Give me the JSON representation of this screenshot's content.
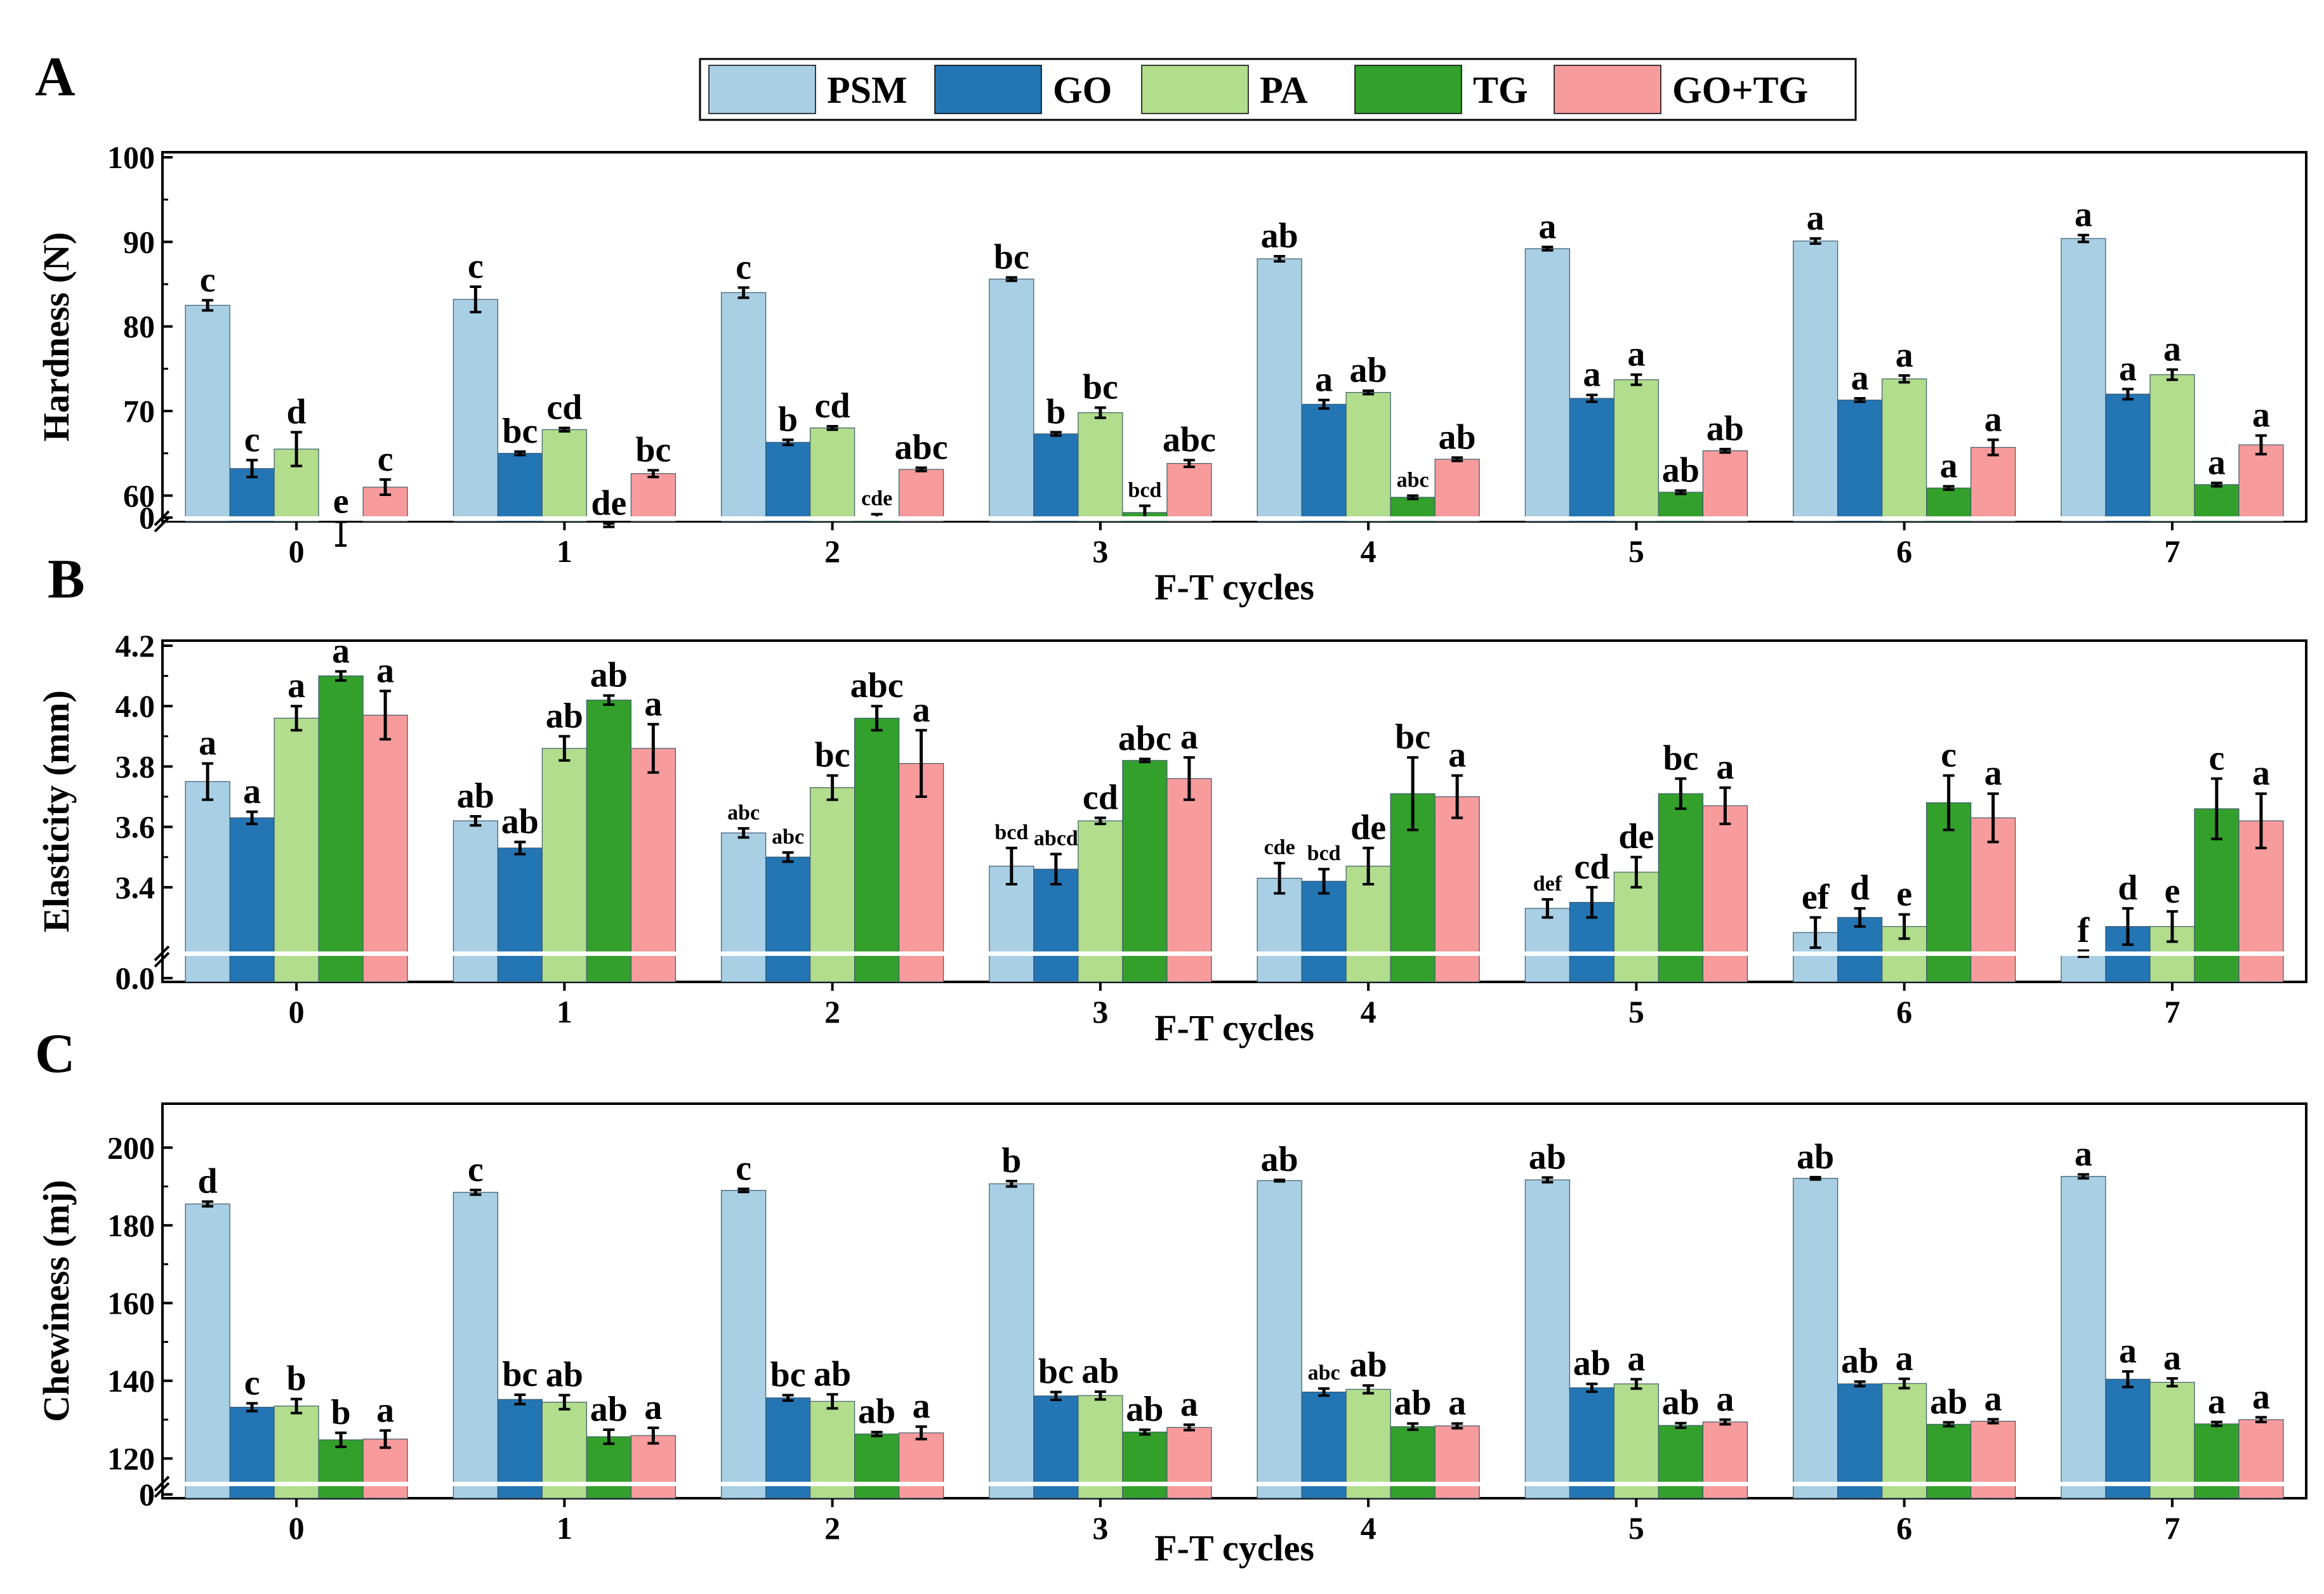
{
  "legend": [
    {
      "name": "PSM",
      "color": "#a8cfe4"
    },
    {
      "name": "GO",
      "color": "#2475b4"
    },
    {
      "name": "PA",
      "color": "#b1dd8c"
    },
    {
      "name": "TG",
      "color": "#33a02c"
    },
    {
      "name": "GO+TG",
      "color": "#f89b9c"
    }
  ],
  "chart_data": [
    {
      "panel": "A",
      "type": "bar",
      "xlabel": "F-T cycles",
      "ylabel": "Hardness (N)",
      "categories": [
        "0",
        "1",
        "2",
        "3",
        "4",
        "5",
        "6",
        "7"
      ],
      "ylim": [
        0,
        100
      ],
      "axis_break": [
        0,
        50
      ],
      "yticks": [
        0,
        60,
        70,
        80,
        90,
        100
      ],
      "series": [
        {
          "name": "PSM",
          "values": [
            82.5,
            83.2,
            84.0,
            85.6,
            88.0,
            89.2,
            90.1,
            90.4
          ],
          "errors": [
            0.6,
            1.5,
            0.6,
            0.2,
            0.3,
            0.2,
            0.3,
            0.4
          ],
          "labels": [
            "c",
            "c",
            "c",
            "bc",
            "ab",
            "a",
            "a",
            "a"
          ]
        },
        {
          "name": "GO",
          "values": [
            63.2,
            65.0,
            66.3,
            67.3,
            70.8,
            71.5,
            71.3,
            72.0
          ],
          "errors": [
            1.0,
            0.2,
            0.3,
            0.2,
            0.5,
            0.4,
            0.2,
            0.6
          ],
          "labels": [
            "c",
            "bc",
            "b",
            "b",
            "a",
            "a",
            "a",
            "a"
          ]
        },
        {
          "name": "PA",
          "values": [
            65.5,
            67.8,
            68.0,
            69.8,
            72.2,
            73.7,
            73.8,
            74.3
          ],
          "errors": [
            2.0,
            0.2,
            0.2,
            0.6,
            0.2,
            0.6,
            0.4,
            0.6
          ],
          "labels": [
            "d",
            "cd",
            "cd",
            "bc",
            "ab",
            "a",
            "a",
            "a"
          ]
        },
        {
          "name": "TG",
          "values": [
            55.5,
            56.5,
            57.5,
            58.0,
            59.8,
            60.4,
            60.9,
            61.3
          ],
          "errors": [
            1.4,
            0.2,
            0.3,
            0.8,
            0.2,
            0.2,
            0.2,
            0.2
          ],
          "labels": [
            "e",
            "de",
            "cde",
            "bcd",
            "abc",
            "ab",
            "a",
            "a"
          ]
        },
        {
          "name": "GO+TG",
          "values": [
            61.0,
            62.6,
            63.1,
            63.8,
            64.3,
            65.3,
            65.7,
            66.0
          ],
          "errors": [
            0.9,
            0.4,
            0.2,
            0.4,
            0.2,
            0.2,
            0.9,
            1.1
          ],
          "labels": [
            "c",
            "bc",
            "abc",
            "abc",
            "ab",
            "ab",
            "a",
            "a"
          ]
        }
      ]
    },
    {
      "panel": "B",
      "type": "bar",
      "xlabel": "F-T cycles",
      "ylabel": "Elasticity (mm)",
      "categories": [
        "0",
        "1",
        "2",
        "3",
        "4",
        "5",
        "6",
        "7"
      ],
      "ylim": [
        0.0,
        4.2
      ],
      "axis_break": [
        0.0,
        3.2
      ],
      "yticks": [
        0.0,
        3.4,
        3.6,
        3.8,
        4.0,
        4.2
      ],
      "series": [
        {
          "name": "PSM",
          "values": [
            3.75,
            3.62,
            3.58,
            3.47,
            3.43,
            3.33,
            3.25,
            3.18
          ],
          "errors": [
            0.06,
            0.015,
            0.015,
            0.06,
            0.05,
            0.03,
            0.05,
            0.01
          ],
          "labels": [
            "a",
            "ab",
            "abc",
            "bcd",
            "cde",
            "def",
            "ef",
            "f"
          ]
        },
        {
          "name": "GO",
          "values": [
            3.63,
            3.53,
            3.5,
            3.46,
            3.42,
            3.35,
            3.3,
            3.27
          ],
          "errors": [
            0.02,
            0.02,
            0.015,
            0.05,
            0.04,
            0.05,
            0.03,
            0.06
          ],
          "labels": [
            "a",
            "ab",
            "abc",
            "abcd",
            "bcd",
            "cd",
            "d",
            "d"
          ]
        },
        {
          "name": "PA",
          "values": [
            3.96,
            3.86,
            3.73,
            3.62,
            3.47,
            3.45,
            3.27,
            3.27
          ],
          "errors": [
            0.04,
            0.04,
            0.04,
            0.01,
            0.06,
            0.05,
            0.04,
            0.05
          ],
          "labels": [
            "a",
            "ab",
            "bc",
            "cd",
            "de",
            "de",
            "e",
            "e"
          ]
        },
        {
          "name": "TG",
          "values": [
            4.1,
            4.02,
            3.96,
            3.82,
            3.71,
            3.71,
            3.68,
            3.66
          ],
          "errors": [
            0.015,
            0.015,
            0.04,
            0.005,
            0.12,
            0.05,
            0.09,
            0.1
          ],
          "labels": [
            "a",
            "ab",
            "abc",
            "abc",
            "bc",
            "bc",
            "c",
            "c"
          ]
        },
        {
          "name": "GO+TG",
          "values": [
            3.97,
            3.86,
            3.81,
            3.76,
            3.7,
            3.67,
            3.63,
            3.62
          ],
          "errors": [
            0.08,
            0.08,
            0.11,
            0.07,
            0.07,
            0.06,
            0.08,
            0.09
          ],
          "labels": [
            "a",
            "a",
            "a",
            "a",
            "a",
            "a",
            "a",
            "a"
          ]
        }
      ]
    },
    {
      "panel": "C",
      "type": "bar",
      "xlabel": "F-T cycles",
      "ylabel": "Chewiness (mj)",
      "categories": [
        "0",
        "1",
        "2",
        "3",
        "4",
        "5",
        "6",
        "7"
      ],
      "ylim": [
        0,
        210
      ],
      "axis_break": [
        0,
        115
      ],
      "yticks": [
        0,
        120,
        140,
        160,
        180,
        200
      ],
      "series": [
        {
          "name": "PSM",
          "values": [
            185.5,
            188.5,
            189.0,
            190.7,
            191.5,
            191.7,
            192.1,
            192.6
          ],
          "errors": [
            0.6,
            0.6,
            0.4,
            0.7,
            0.2,
            0.6,
            0.3,
            0.5
          ],
          "labels": [
            "d",
            "c",
            "c",
            "b",
            "ab",
            "ab",
            "ab",
            "a"
          ]
        },
        {
          "name": "GO",
          "values": [
            133.2,
            135.2,
            135.6,
            136.1,
            137.1,
            138.2,
            139.2,
            140.4
          ],
          "errors": [
            1.0,
            1.2,
            0.7,
            1.0,
            0.9,
            1.0,
            0.6,
            2.0
          ],
          "labels": [
            "c",
            "bc",
            "bc",
            "bc",
            "abc",
            "ab",
            "ab",
            "a"
          ]
        },
        {
          "name": "PA",
          "values": [
            133.5,
            134.5,
            134.7,
            136.2,
            137.8,
            139.2,
            139.3,
            139.6
          ],
          "errors": [
            1.8,
            1.8,
            1.8,
            1.0,
            1.0,
            1.2,
            1.2,
            1.0
          ],
          "labels": [
            "b",
            "ab",
            "ab",
            "ab",
            "ab",
            "a",
            "a",
            "a"
          ]
        },
        {
          "name": "TG",
          "values": [
            124.8,
            125.6,
            126.3,
            126.8,
            128.2,
            128.5,
            128.8,
            128.9
          ],
          "errors": [
            1.8,
            1.8,
            0.5,
            0.6,
            0.8,
            0.6,
            0.5,
            0.5
          ],
          "labels": [
            "b",
            "ab",
            "ab",
            "ab",
            "ab",
            "ab",
            "ab",
            "a"
          ]
        },
        {
          "name": "GO+TG",
          "values": [
            125.0,
            125.9,
            126.6,
            128.0,
            128.4,
            129.4,
            129.6,
            130.0
          ],
          "errors": [
            2.2,
            2.0,
            1.6,
            0.7,
            0.6,
            0.6,
            0.5,
            0.6
          ],
          "labels": [
            "a",
            "a",
            "a",
            "a",
            "a",
            "a",
            "a",
            "a"
          ]
        }
      ]
    }
  ]
}
